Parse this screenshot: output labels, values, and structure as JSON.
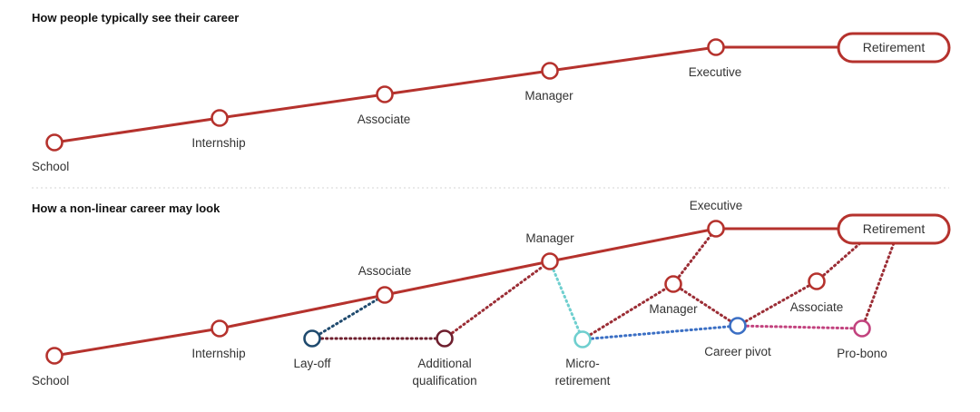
{
  "top": {
    "heading": "How people typically see their career",
    "stages": {
      "school": "School",
      "internship": "Internship",
      "associate": "Associate",
      "manager": "Manager",
      "executive": "Executive",
      "retirement": "Retirement"
    }
  },
  "bottom": {
    "heading": "How a non-linear career may look",
    "stages": {
      "school": "School",
      "internship": "Internship",
      "associate": "Associate",
      "manager": "Manager",
      "executive": "Executive",
      "retirement": "Retirement",
      "layoff": "Lay-off",
      "additional_1": "Additional",
      "additional_2": "qualification",
      "micro_1": "Micro-",
      "micro_2": "retirement",
      "manager2": "Manager",
      "career_pivot": "Career pivot",
      "associate2": "Associate",
      "probono": "Pro-bono"
    }
  },
  "colors": {
    "main_path": "#b5322d",
    "layoff": "#1f4a6e",
    "additional_qualification": "#6e1f2e",
    "micro_retirement": "#6fcfcf",
    "career_pivot": "#3b6fc4",
    "pro_bono": "#c2427e"
  }
}
